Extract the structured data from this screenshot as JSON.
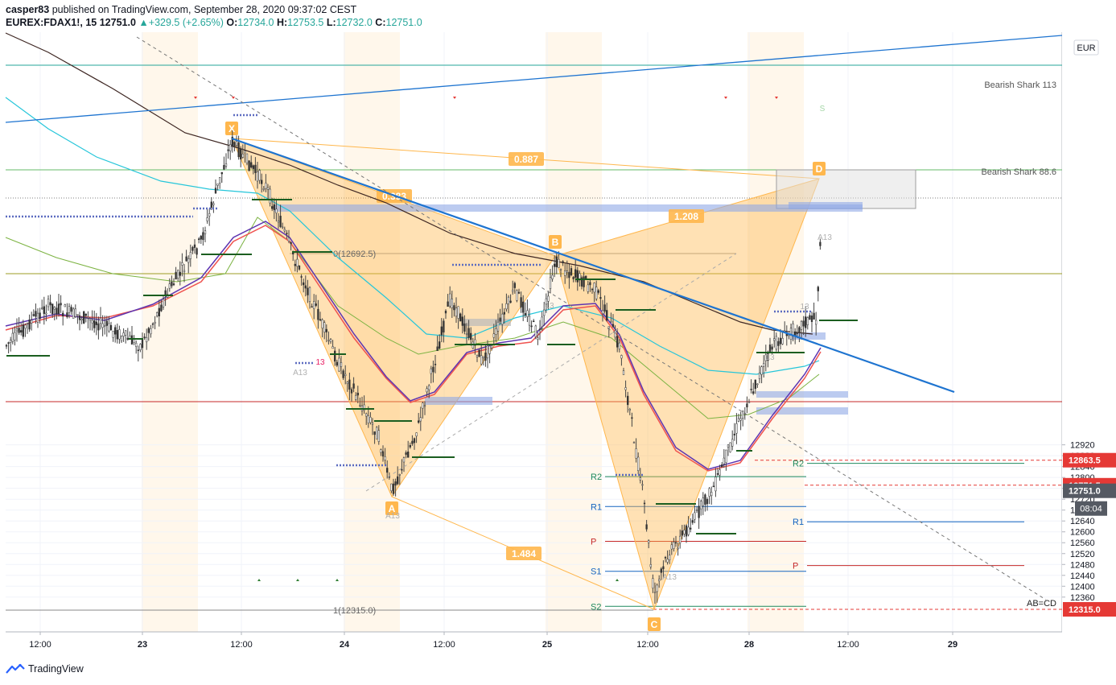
{
  "header": {
    "publisher": "casper83",
    "published_text": "published on TradingView.com, September 28, 2020 09:37:02 CEST",
    "symbol": "EUREX:FDAX1!, 15",
    "last": "12751.0",
    "change": "+329.5 (+2.65%)",
    "o_label": "O:",
    "o": "12734.0",
    "h_label": "H:",
    "h": "12753.5",
    "l_label": "L:",
    "l": "12732.0",
    "c_label": "C:",
    "c": "12751.0"
  },
  "brand": {
    "name": "TradingView"
  },
  "currency_label": "EUR",
  "chart_data": {
    "type": "candlestick",
    "x_ticks": [
      "12:00",
      "23",
      "12:00",
      "24",
      "12:00",
      "25",
      "12:00",
      "28",
      "12:00",
      "29"
    ],
    "y_ticks": [
      12360,
      12400,
      12440,
      12480,
      12520,
      12560,
      12600,
      12640,
      12680,
      12720,
      12760,
      12800,
      12840,
      12880,
      12920
    ],
    "ylim": [
      12290,
      12930
    ],
    "price_tags": [
      {
        "value": 12863.5,
        "label": "12863.5",
        "color": "#e53935"
      },
      {
        "value": 12771.5,
        "label": "12771.5",
        "color": "#e53935"
      },
      {
        "value": 12751.0,
        "label": "12751.0",
        "color": "#555a63"
      },
      {
        "value": 12315.0,
        "label": "12315.0",
        "color": "#e53935"
      }
    ],
    "countdown": "08:04",
    "pattern_points": [
      {
        "label": "X",
        "value": 12812
      },
      {
        "label": "A",
        "value": 12437
      },
      {
        "label": "B",
        "value": 12692.5
      },
      {
        "label": "C",
        "value": 12315
      },
      {
        "label": "D",
        "value": 12771.5
      }
    ],
    "ratios": [
      "0.887",
      "0.383",
      "1.208",
      "1.484"
    ],
    "annotations": [
      {
        "text": "Bearish Shark 113",
        "value": 12863.5
      },
      {
        "text": "Bearish Shark 88.6",
        "value": 12771.5
      },
      {
        "text": "AB=CD",
        "value": 12315
      },
      {
        "text": "0(12692.5)",
        "value": 12692.5
      },
      {
        "text": "1(12315.0)",
        "value": 12315.0
      }
    ],
    "pivots": [
      {
        "label": "R2",
        "value": 12803
      },
      {
        "label": "R1",
        "value": 12693
      },
      {
        "label": "P",
        "value": 12565
      },
      {
        "label": "S1",
        "value": 12455
      },
      {
        "label": "S2",
        "value": 12326
      },
      {
        "label": "R2",
        "value": 12852
      },
      {
        "label": "R1",
        "value": 12637
      },
      {
        "label": "P",
        "value": 12476
      }
    ],
    "marker_labels": [
      "A13",
      "13",
      "A13",
      "13",
      "13",
      "A13",
      "13",
      "A13",
      "S"
    ]
  }
}
